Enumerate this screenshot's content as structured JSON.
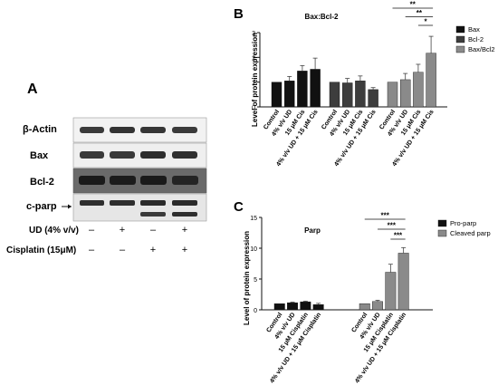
{
  "panel_a": {
    "panel_label": "A",
    "blot_labels": [
      "β-Actin",
      "Bax",
      "Bcl-2",
      "c-parp"
    ],
    "treatment_rows": [
      {
        "label": "UD (4% v/v)",
        "signs": [
          "–",
          "+",
          "–",
          "+"
        ]
      },
      {
        "label": "Cisplatin (15μM)",
        "signs": [
          "–",
          "–",
          "+",
          "+"
        ]
      }
    ]
  },
  "chart_data": [
    {
      "panel_label": "B",
      "type": "bar",
      "title": "Bax:Bcl-2",
      "ylabel": "Level of protein expression",
      "xlabel": "",
      "ylim": [
        0,
        3
      ],
      "yticks": [
        "0",
        "1",
        "2",
        "3"
      ],
      "grid": false,
      "legend_position": "right",
      "categories": [
        "Control",
        "4% v/v UD",
        "15 μM Cis",
        "4% v/v UD + 15 μM Cis"
      ],
      "series": [
        {
          "name": "Bax",
          "color": "#111111",
          "values": [
            1.0,
            1.05,
            1.45,
            1.52
          ],
          "errors": [
            0.0,
            0.18,
            0.22,
            0.45
          ]
        },
        {
          "name": "Bcl-2",
          "color": "#3d3d3d",
          "values": [
            1.0,
            0.97,
            1.05,
            0.7
          ],
          "errors": [
            0.0,
            0.18,
            0.2,
            0.08
          ]
        },
        {
          "name": "Bax/Bcl2",
          "color": "#8a8a8a",
          "values": [
            1.0,
            1.1,
            1.4,
            2.17
          ],
          "errors": [
            0.0,
            0.25,
            0.32,
            0.68
          ]
        }
      ],
      "significance": [
        "**",
        "**",
        "*"
      ]
    },
    {
      "panel_label": "C",
      "type": "bar",
      "title": "Parp",
      "ylabel": "Level of protein expression",
      "xlabel": "",
      "ylim": [
        0,
        15
      ],
      "yticks": [
        "0",
        "5",
        "10",
        "15"
      ],
      "grid": false,
      "legend_position": "right",
      "categories": [
        "Control",
        "4% v/v UD",
        "15 μM Cisplatin",
        "4% v/v UD + 15 μM Cisplatin"
      ],
      "series": [
        {
          "name": "Pro-parp",
          "color": "#111111",
          "values": [
            1.0,
            1.15,
            1.3,
            0.85
          ],
          "errors": [
            0.0,
            0.1,
            0.1,
            0.2
          ]
        },
        {
          "name": "Cleaved parp",
          "color": "#8a8a8a",
          "values": [
            1.0,
            1.35,
            6.1,
            9.2
          ],
          "errors": [
            0.0,
            0.2,
            1.3,
            0.9
          ]
        }
      ],
      "significance": [
        "***",
        "***",
        "***"
      ]
    }
  ]
}
